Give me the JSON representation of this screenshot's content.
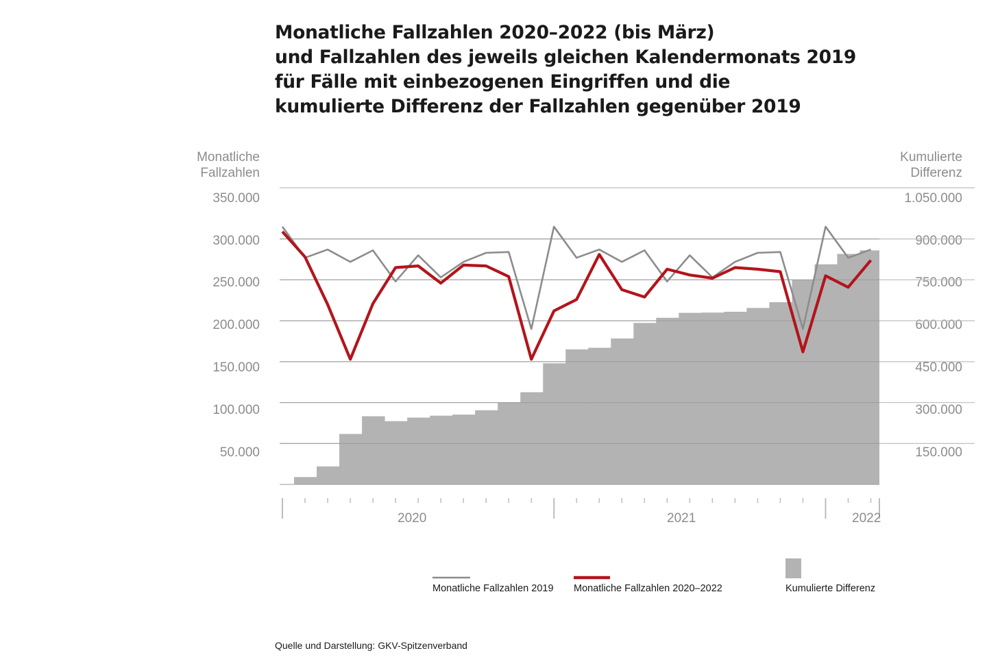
{
  "title_lines": [
    "Monatliche Fallzahlen 2020–2022 (bis März)",
    "und Fallzahlen des jeweils gleichen Kalendermonats 2019",
    "für Fälle mit einbezogenen Eingriffen und die",
    "kumulierte Differenz der Fallzahlen gegenüber 2019"
  ],
  "left_axis": {
    "label_lines": [
      "Monatliche",
      "Fallzahlen"
    ],
    "ticks": [
      "350.000",
      "300.000",
      "250.000",
      "200.000",
      "150.000",
      "100.000",
      "50.000"
    ]
  },
  "right_axis": {
    "label_lines": [
      "Kumulierte",
      "Differenz"
    ],
    "ticks": [
      "1.050.000",
      "900.000",
      "750.000",
      "600.000",
      "450.000",
      "300.000",
      "150.000"
    ]
  },
  "years": [
    "2020",
    "2021",
    "2022"
  ],
  "legend": {
    "series_2019": "Monatliche Fallzahlen 2019",
    "series_2020_2022": "Monatliche Fallzahlen 2020–2022",
    "cumulative": "Kumulierte Differenz"
  },
  "source": "Quelle und Darstellung: GKV-Spitzenverband",
  "colors": {
    "line_2019": "#8c8c8c",
    "line_2020_2022": "#b3141b",
    "bars": "#b3b3b3",
    "grid": "#bdbdbd"
  },
  "chart_data": {
    "type": "line+bar",
    "x": [
      "2020-01",
      "2020-02",
      "2020-03",
      "2020-04",
      "2020-05",
      "2020-06",
      "2020-07",
      "2020-08",
      "2020-09",
      "2020-10",
      "2020-11",
      "2020-12",
      "2021-01",
      "2021-02",
      "2021-03",
      "2021-04",
      "2021-05",
      "2021-06",
      "2021-07",
      "2021-08",
      "2021-09",
      "2021-10",
      "2021-11",
      "2021-12",
      "2022-01",
      "2022-02",
      "2022-03"
    ],
    "y_left_range": [
      0,
      350000
    ],
    "y_right_range": [
      0,
      1050000
    ],
    "series": [
      {
        "name": "Monatliche Fallzahlen 2019",
        "axis": "left",
        "type": "line",
        "values": [
          315000,
          277000,
          287000,
          272000,
          286000,
          248000,
          280000,
          253000,
          272000,
          283000,
          284000,
          190000,
          315000,
          277000,
          287000,
          272000,
          286000,
          248000,
          280000,
          253000,
          272000,
          283000,
          284000,
          190000,
          315000,
          277000,
          287000
        ]
      },
      {
        "name": "Monatliche Fallzahlen 2020–2022",
        "axis": "left",
        "type": "line",
        "values": [
          309000,
          278000,
          220000,
          153000,
          221000,
          265000,
          267000,
          246000,
          268000,
          267000,
          254000,
          153000,
          212000,
          226000,
          281000,
          238000,
          229000,
          263000,
          256000,
          252000,
          265000,
          263000,
          260000,
          162000,
          255000,
          241000,
          274000
        ]
      },
      {
        "name": "Kumulierte Differenz",
        "axis": "right",
        "type": "bar",
        "values": [
          0,
          27000,
          66000,
          185000,
          250000,
          232000,
          245000,
          252000,
          256000,
          272000,
          301000,
          338000,
          444000,
          495000,
          501000,
          535000,
          592000,
          611000,
          629000,
          630000,
          633000,
          647000,
          668000,
          749000,
          807000,
          845000,
          858000
        ]
      }
    ]
  }
}
